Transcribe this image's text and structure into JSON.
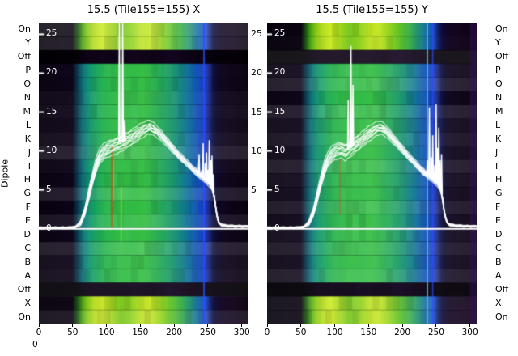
{
  "figure": {
    "ylabel": "Dipole",
    "corner_label": "0"
  },
  "axes": {
    "dipole_labels": [
      "On",
      "Y",
      "Off",
      "P",
      "O",
      "N",
      "M",
      "L",
      "K",
      "J",
      "I",
      "H",
      "G",
      "F",
      "E",
      "D",
      "C",
      "B",
      "A",
      "Off",
      "X",
      "On"
    ],
    "gap_tick_labels": [
      25,
      20,
      15,
      10,
      5
    ],
    "inner_y_ticks": [
      25,
      20,
      15,
      10,
      5,
      0
    ],
    "x_ticks": [
      0,
      50,
      100,
      150,
      200,
      250,
      300
    ]
  },
  "style": {
    "trace_color": "#ffffff",
    "text_color": "#000000",
    "background": "#ffffff",
    "profiles": {
      "normal": [
        [
          0,
          "#07000e"
        ],
        [
          50,
          "#0a0216"
        ],
        [
          58,
          "#083c50"
        ],
        [
          66,
          "#0a7478"
        ],
        [
          75,
          "#10946e"
        ],
        [
          85,
          "#18a45c"
        ],
        [
          95,
          "#22b04e"
        ],
        [
          110,
          "#2cb846"
        ],
        [
          125,
          "#30bc42"
        ],
        [
          140,
          "#2eba44"
        ],
        [
          155,
          "#33be40"
        ],
        [
          170,
          "#2ab14c"
        ],
        [
          185,
          "#20a45c"
        ],
        [
          200,
          "#16926f"
        ],
        [
          215,
          "#0e7a8c"
        ],
        [
          228,
          "#0c5ca8"
        ],
        [
          240,
          "#1242c0"
        ],
        [
          248,
          "#1c34b4"
        ],
        [
          253,
          "#162070"
        ],
        [
          258,
          "#0c0c3c"
        ],
        [
          264,
          "#0a0524"
        ],
        [
          275,
          "#0e031a"
        ],
        [
          295,
          "#0a0113"
        ],
        [
          310,
          "#08000f"
        ]
      ],
      "bright": [
        [
          0,
          "#05000a"
        ],
        [
          50,
          "#080310"
        ],
        [
          58,
          "#1c5a10"
        ],
        [
          64,
          "#46a012"
        ],
        [
          72,
          "#84c614"
        ],
        [
          82,
          "#b4dc1e"
        ],
        [
          94,
          "#ccea24"
        ],
        [
          108,
          "#a0d41c"
        ],
        [
          122,
          "#74c61a"
        ],
        [
          136,
          "#8cd01e"
        ],
        [
          150,
          "#b8e022"
        ],
        [
          165,
          "#c4e626"
        ],
        [
          180,
          "#96d41e"
        ],
        [
          195,
          "#60c226"
        ],
        [
          210,
          "#38ae44"
        ],
        [
          225,
          "#1e8c78"
        ],
        [
          238,
          "#1464b0"
        ],
        [
          247,
          "#1e4cc8"
        ],
        [
          253,
          "#142070"
        ],
        [
          259,
          "#0c0a38"
        ],
        [
          268,
          "#100522"
        ],
        [
          285,
          "#12041c"
        ],
        [
          310,
          "#0a0112"
        ]
      ],
      "dark": [
        [
          0,
          "#020004"
        ],
        [
          55,
          "#040107"
        ],
        [
          70,
          "#0c0314"
        ],
        [
          95,
          "#100418"
        ],
        [
          120,
          "#0d0315"
        ],
        [
          145,
          "#12051c"
        ],
        [
          170,
          "#0e0316"
        ],
        [
          195,
          "#130520"
        ],
        [
          220,
          "#0d0316"
        ],
        [
          245,
          "#090210"
        ],
        [
          262,
          "#05010a"
        ],
        [
          285,
          "#060109"
        ],
        [
          310,
          "#030005"
        ]
      ]
    }
  },
  "chart_data": [
    {
      "type": "heatmap",
      "panel": "X",
      "title": "15.5 (Tile155=155) X",
      "x_range": [
        0,
        310
      ],
      "x_ticks": [
        0,
        50,
        100,
        150,
        200,
        250,
        300
      ],
      "rows": [
        "On",
        "Y",
        "Off",
        "P",
        "O",
        "N",
        "M",
        "L",
        "K",
        "J",
        "I",
        "H",
        "G",
        "F",
        "E",
        "D",
        "C",
        "B",
        "A",
        "Off",
        "X",
        "On"
      ],
      "row_types": [
        "bright",
        "bright",
        "dark",
        "normal",
        "normal",
        "normal",
        "normal",
        "normal",
        "normal",
        "normal",
        "normal",
        "normal",
        "normal",
        "normal",
        "normal",
        "normal",
        "normal",
        "normal",
        "normal",
        "dark",
        "bright",
        "bright"
      ],
      "features": [
        {
          "x": 243,
          "w": 2.5,
          "color": "#2850ff",
          "alpha": 0.75
        },
        {
          "x": 107,
          "w": 1.4,
          "color": "#ff2800",
          "alpha": 0.85,
          "rows": [
            9,
            14
          ]
        },
        {
          "x": 110,
          "w": 1.0,
          "color": "#ff9600",
          "alpha": 0.8,
          "rows": [
            10,
            12
          ]
        },
        {
          "x": 121,
          "w": 1.4,
          "color": "#c8ff00",
          "alpha": 0.8,
          "rows": [
            12,
            15
          ]
        }
      ],
      "overlay_line": {
        "ylim": [
          -12.2,
          26.5
        ],
        "y_ticks": [
          25,
          20,
          15,
          10,
          5,
          0
        ],
        "n_traces": 12,
        "points": [
          [
            0,
            0.15
          ],
          [
            45,
            0.15
          ],
          [
            55,
            0.25
          ],
          [
            62,
            0.8
          ],
          [
            68,
            2.2
          ],
          [
            74,
            4.4
          ],
          [
            80,
            6.6
          ],
          [
            85,
            8.2
          ],
          [
            90,
            9.3
          ],
          [
            96,
            9.9
          ],
          [
            102,
            10.3
          ],
          [
            110,
            10.6
          ],
          [
            118,
            10.9
          ],
          [
            126,
            11.2
          ],
          [
            134,
            11.6
          ],
          [
            142,
            12.0
          ],
          [
            150,
            12.5
          ],
          [
            158,
            12.9
          ],
          [
            164,
            13.1
          ],
          [
            170,
            12.8
          ],
          [
            176,
            12.4
          ],
          [
            182,
            11.9
          ],
          [
            188,
            11.3
          ],
          [
            194,
            10.7
          ],
          [
            200,
            10.1
          ],
          [
            206,
            9.5
          ],
          [
            212,
            9.0
          ],
          [
            218,
            8.5
          ],
          [
            224,
            8.0
          ],
          [
            230,
            7.5
          ],
          [
            236,
            7.0
          ],
          [
            242,
            6.6
          ],
          [
            248,
            6.2
          ],
          [
            253,
            5.8
          ],
          [
            257,
            5.2
          ],
          [
            260,
            3.8
          ],
          [
            263,
            1.8
          ],
          [
            266,
            0.8
          ],
          [
            270,
            0.5
          ],
          [
            278,
            0.38
          ],
          [
            290,
            0.33
          ],
          [
            310,
            0.3
          ]
        ],
        "spread": [
          [
            0,
            0.06
          ],
          [
            55,
            0.08
          ],
          [
            65,
            0.5
          ],
          [
            75,
            0.9
          ],
          [
            85,
            1.15
          ],
          [
            100,
            1.25
          ],
          [
            120,
            1.2
          ],
          [
            140,
            1.05
          ],
          [
            160,
            0.8
          ],
          [
            180,
            0.65
          ],
          [
            200,
            0.55
          ],
          [
            220,
            0.5
          ],
          [
            240,
            0.45
          ],
          [
            255,
            0.5
          ],
          [
            262,
            0.25
          ],
          [
            268,
            0.12
          ],
          [
            310,
            0.08
          ]
        ],
        "spikes": [
          [
            119,
            26.5
          ],
          [
            124,
            26.5
          ],
          [
            127,
            14.0
          ],
          [
            234,
            7.8
          ],
          [
            237,
            9.6
          ],
          [
            240,
            7.2
          ],
          [
            243,
            11.0
          ],
          [
            246,
            8.4
          ],
          [
            248,
            9.8
          ],
          [
            250,
            7.6
          ],
          [
            252,
            11.4
          ],
          [
            254,
            8.8
          ],
          [
            256,
            9.4
          ],
          [
            258,
            7.0
          ]
        ]
      }
    },
    {
      "type": "heatmap",
      "panel": "Y",
      "title": "15.5 (Tile155=155) Y",
      "x_range": [
        0,
        310
      ],
      "x_ticks": [
        0,
        50,
        100,
        150,
        200,
        250,
        300
      ],
      "rows": [
        "On",
        "Y",
        "Off",
        "P",
        "O",
        "N",
        "M",
        "L",
        "K",
        "J",
        "I",
        "H",
        "G",
        "F",
        "E",
        "D",
        "C",
        "B",
        "A",
        "Off",
        "X",
        "On"
      ],
      "row_types": [
        "bright",
        "bright",
        "dark",
        "normal",
        "normal",
        "normal",
        "normal",
        "normal",
        "normal",
        "normal",
        "normal",
        "normal",
        "normal",
        "normal",
        "normal",
        "normal",
        "normal",
        "normal",
        "normal",
        "dark",
        "bright",
        "bright"
      ],
      "features": [
        {
          "x": 236,
          "w": 2.2,
          "color": "#20c8ff",
          "alpha": 0.85
        },
        {
          "x": 244,
          "w": 1.8,
          "color": "#2850ff",
          "alpha": 0.7
        },
        {
          "x": 107,
          "w": 1.2,
          "color": "#ff2800",
          "alpha": 0.6,
          "rows": [
            10,
            13
          ]
        },
        {
          "x": 300,
          "w": 10,
          "color": "#381060",
          "alpha": 0.45
        }
      ],
      "overlay_line": {
        "ylim": [
          -12.2,
          26.5
        ],
        "y_ticks": [
          25,
          20,
          15,
          10,
          5,
          0
        ],
        "n_traces": 12,
        "points": [
          [
            0,
            0.15
          ],
          [
            45,
            0.15
          ],
          [
            55,
            0.25
          ],
          [
            62,
            0.8
          ],
          [
            68,
            2.0
          ],
          [
            74,
            4.0
          ],
          [
            80,
            6.2
          ],
          [
            85,
            7.8
          ],
          [
            90,
            8.9
          ],
          [
            96,
            9.6
          ],
          [
            102,
            10.0
          ],
          [
            110,
            10.2
          ],
          [
            116,
            9.9
          ],
          [
            122,
            10.3
          ],
          [
            130,
            10.8
          ],
          [
            138,
            11.3
          ],
          [
            146,
            11.9
          ],
          [
            154,
            12.4
          ],
          [
            162,
            12.9
          ],
          [
            168,
            13.0
          ],
          [
            174,
            12.7
          ],
          [
            180,
            12.2
          ],
          [
            186,
            11.6
          ],
          [
            192,
            11.0
          ],
          [
            198,
            10.4
          ],
          [
            204,
            9.8
          ],
          [
            210,
            9.2
          ],
          [
            216,
            8.7
          ],
          [
            222,
            8.1
          ],
          [
            228,
            7.6
          ],
          [
            234,
            7.1
          ],
          [
            240,
            6.7
          ],
          [
            246,
            6.3
          ],
          [
            252,
            5.9
          ],
          [
            256,
            5.3
          ],
          [
            259,
            4.2
          ],
          [
            262,
            2.2
          ],
          [
            265,
            1.0
          ],
          [
            269,
            0.55
          ],
          [
            278,
            0.4
          ],
          [
            290,
            0.35
          ],
          [
            310,
            0.3
          ]
        ],
        "spread": [
          [
            0,
            0.06
          ],
          [
            55,
            0.08
          ],
          [
            65,
            0.5
          ],
          [
            75,
            0.9
          ],
          [
            85,
            1.15
          ],
          [
            100,
            1.25
          ],
          [
            120,
            1.2
          ],
          [
            140,
            1.05
          ],
          [
            160,
            0.8
          ],
          [
            180,
            0.65
          ],
          [
            200,
            0.55
          ],
          [
            220,
            0.5
          ],
          [
            240,
            0.45
          ],
          [
            255,
            0.5
          ],
          [
            262,
            0.25
          ],
          [
            268,
            0.12
          ],
          [
            310,
            0.08
          ]
        ],
        "spikes": [
          [
            120,
            16.5
          ],
          [
            124,
            23.5
          ],
          [
            127,
            18.5
          ],
          [
            234,
            7.2
          ],
          [
            237,
            8.8
          ],
          [
            240,
            15.6
          ],
          [
            243,
            9.2
          ],
          [
            245,
            12.0
          ],
          [
            248,
            8.2
          ],
          [
            250,
            16.0
          ],
          [
            252,
            10.4
          ],
          [
            254,
            13.0
          ],
          [
            256,
            8.8
          ],
          [
            258,
            9.6
          ]
        ]
      }
    }
  ]
}
